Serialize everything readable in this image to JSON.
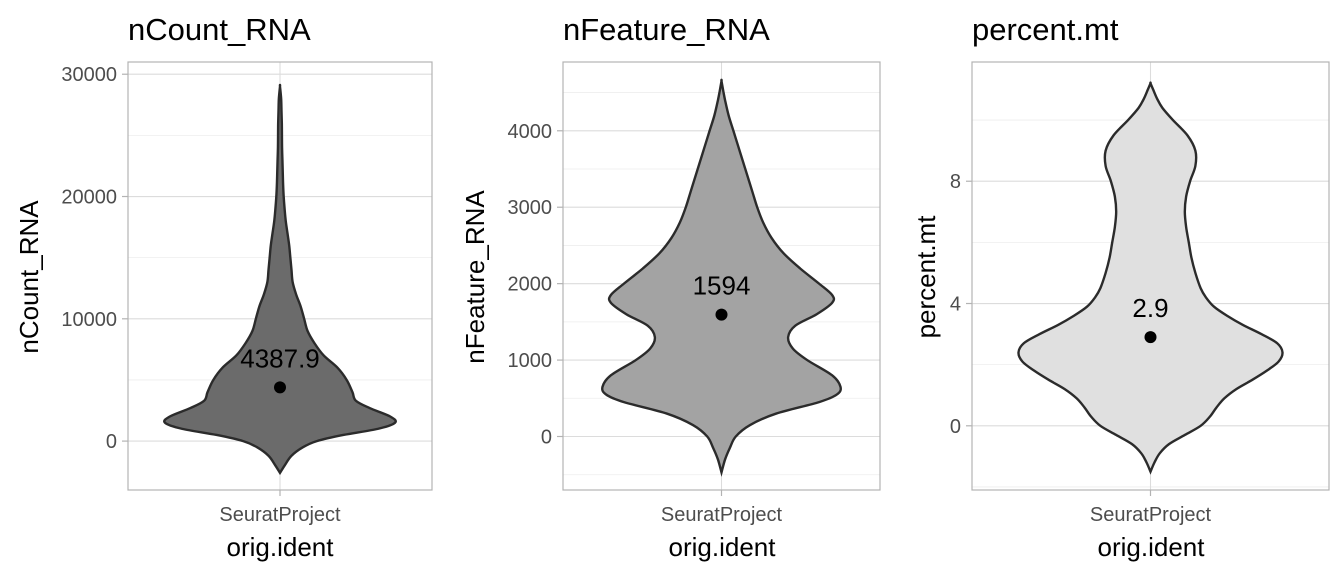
{
  "chart_data": [
    {
      "type": "violin",
      "title": "nCount_RNA",
      "xlabel": "orig.ident",
      "ylabel": "nCount_RNA",
      "categories": [
        "SeuratProject"
      ],
      "yticks": [
        0,
        10000,
        20000,
        30000
      ],
      "ylim": [
        -4000,
        31000
      ],
      "fill": "#6b6b6b",
      "grid": true,
      "point": 4387.9,
      "point_label": "4387.9",
      "profile": [
        [
          -2600,
          0
        ],
        [
          -2000,
          0.04
        ],
        [
          -1200,
          0.1
        ],
        [
          -500,
          0.2
        ],
        [
          0,
          0.32
        ],
        [
          500,
          0.55
        ],
        [
          1000,
          0.85
        ],
        [
          1500,
          1.0
        ],
        [
          2000,
          0.96
        ],
        [
          2700,
          0.78
        ],
        [
          3300,
          0.66
        ],
        [
          4000,
          0.63
        ],
        [
          5000,
          0.58
        ],
        [
          6000,
          0.5
        ],
        [
          7000,
          0.38
        ],
        [
          8000,
          0.3
        ],
        [
          9000,
          0.24
        ],
        [
          10000,
          0.21
        ],
        [
          11000,
          0.18
        ],
        [
          12000,
          0.14
        ],
        [
          13000,
          0.11
        ],
        [
          14000,
          0.1
        ],
        [
          15000,
          0.09
        ],
        [
          16000,
          0.08
        ],
        [
          17000,
          0.065
        ],
        [
          18000,
          0.05
        ],
        [
          19000,
          0.04
        ],
        [
          20000,
          0.032
        ],
        [
          21000,
          0.027
        ],
        [
          22000,
          0.024
        ],
        [
          23000,
          0.021
        ],
        [
          24000,
          0.018
        ],
        [
          25000,
          0.017
        ],
        [
          26000,
          0.016
        ],
        [
          27000,
          0.013
        ],
        [
          28000,
          0.01
        ],
        [
          29000,
          0
        ]
      ]
    },
    {
      "type": "violin",
      "title": "nFeature_RNA",
      "xlabel": "orig.ident",
      "ylabel": "nFeature_RNA",
      "categories": [
        "SeuratProject"
      ],
      "yticks": [
        0,
        1000,
        2000,
        3000,
        4000
      ],
      "ylim": [
        -700,
        4900
      ],
      "fill": "#a3a3a3",
      "grid": true,
      "point": 1594,
      "point_label": "1594",
      "profile": [
        [
          -470,
          0
        ],
        [
          -300,
          0.03
        ],
        [
          -150,
          0.07
        ],
        [
          0,
          0.12
        ],
        [
          150,
          0.24
        ],
        [
          300,
          0.46
        ],
        [
          450,
          0.82
        ],
        [
          550,
          0.97
        ],
        [
          650,
          1.0
        ],
        [
          800,
          0.93
        ],
        [
          1000,
          0.72
        ],
        [
          1150,
          0.6
        ],
        [
          1300,
          0.56
        ],
        [
          1450,
          0.62
        ],
        [
          1600,
          0.8
        ],
        [
          1750,
          0.93
        ],
        [
          1850,
          0.93
        ],
        [
          2000,
          0.82
        ],
        [
          2200,
          0.66
        ],
        [
          2400,
          0.52
        ],
        [
          2600,
          0.42
        ],
        [
          2800,
          0.35
        ],
        [
          3000,
          0.3
        ],
        [
          3200,
          0.26
        ],
        [
          3400,
          0.22
        ],
        [
          3600,
          0.18
        ],
        [
          3800,
          0.14
        ],
        [
          4000,
          0.1
        ],
        [
          4200,
          0.06
        ],
        [
          4400,
          0.03
        ],
        [
          4520,
          0.015
        ],
        [
          4650,
          0
        ]
      ]
    },
    {
      "type": "violin",
      "title": "percent.mt",
      "xlabel": "orig.ident",
      "ylabel": "percent.mt",
      "categories": [
        "SeuratProject"
      ],
      "yticks": [
        0,
        4,
        8
      ],
      "ylim": [
        -2.1,
        11.9
      ],
      "fill": "#e0e0e0",
      "grid": true,
      "point": 2.9,
      "point_label": "2.9",
      "profile": [
        [
          -1.5,
          0
        ],
        [
          -1.2,
          0.03
        ],
        [
          -0.9,
          0.07
        ],
        [
          -0.6,
          0.14
        ],
        [
          -0.3,
          0.26
        ],
        [
          0,
          0.38
        ],
        [
          0.3,
          0.45
        ],
        [
          0.6,
          0.5
        ],
        [
          0.9,
          0.56
        ],
        [
          1.2,
          0.65
        ],
        [
          1.5,
          0.77
        ],
        [
          1.8,
          0.88
        ],
        [
          2.1,
          0.97
        ],
        [
          2.4,
          1.0
        ],
        [
          2.7,
          0.96
        ],
        [
          3.0,
          0.84
        ],
        [
          3.3,
          0.7
        ],
        [
          3.6,
          0.58
        ],
        [
          3.9,
          0.48
        ],
        [
          4.2,
          0.42
        ],
        [
          4.5,
          0.38
        ],
        [
          5.0,
          0.34
        ],
        [
          5.5,
          0.31
        ],
        [
          6.0,
          0.29
        ],
        [
          6.5,
          0.27
        ],
        [
          7.0,
          0.26
        ],
        [
          7.5,
          0.27
        ],
        [
          8.0,
          0.3
        ],
        [
          8.5,
          0.34
        ],
        [
          9.0,
          0.34
        ],
        [
          9.5,
          0.28
        ],
        [
          10.0,
          0.17
        ],
        [
          10.4,
          0.09
        ],
        [
          10.7,
          0.05
        ],
        [
          11.0,
          0.02
        ],
        [
          11.2,
          0
        ]
      ]
    }
  ]
}
